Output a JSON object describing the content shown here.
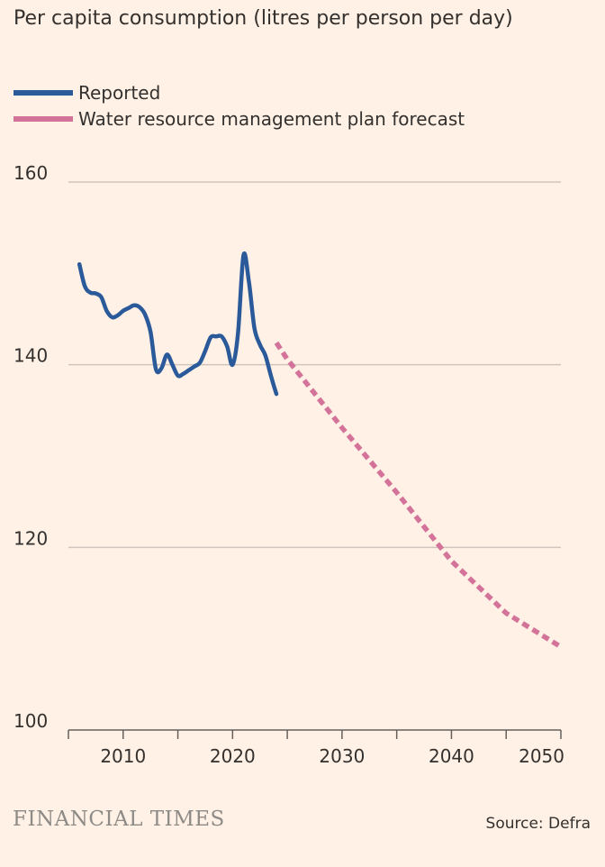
{
  "chart_data": {
    "type": "line",
    "title": "Per capita consumption (litres per person per day)",
    "xlim": [
      2005,
      2050
    ],
    "ylim": [
      100,
      160
    ],
    "y_ticks": [
      160,
      140,
      120,
      100
    ],
    "x_ticks": [
      2010,
      2020,
      2030,
      2040,
      2050
    ],
    "grid": "horizontal",
    "legend_position": "top-left",
    "series": [
      {
        "name": "Reported",
        "color": "#2b5a9a",
        "style": "solid",
        "points": [
          [
            2006.0,
            151.0
          ],
          [
            2006.5,
            148.6
          ],
          [
            2007.0,
            147.9
          ],
          [
            2007.5,
            147.8
          ],
          [
            2008.0,
            147.4
          ],
          [
            2008.5,
            145.9
          ],
          [
            2009.0,
            145.2
          ],
          [
            2009.5,
            145.4
          ],
          [
            2010.0,
            145.9
          ],
          [
            2010.5,
            146.2
          ],
          [
            2011.0,
            146.5
          ],
          [
            2011.5,
            146.3
          ],
          [
            2012.0,
            145.5
          ],
          [
            2012.5,
            143.6
          ],
          [
            2013.0,
            139.5
          ],
          [
            2013.5,
            139.6
          ],
          [
            2014.0,
            141.1
          ],
          [
            2014.5,
            140.0
          ],
          [
            2015.0,
            138.8
          ],
          [
            2015.5,
            139.0
          ],
          [
            2016.0,
            139.4
          ],
          [
            2016.5,
            139.8
          ],
          [
            2017.0,
            140.2
          ],
          [
            2017.5,
            141.5
          ],
          [
            2018.0,
            143.0
          ],
          [
            2018.5,
            143.1
          ],
          [
            2019.0,
            143.1
          ],
          [
            2019.5,
            142.0
          ],
          [
            2020.0,
            140.0
          ],
          [
            2020.5,
            143.5
          ],
          [
            2021.0,
            152.0
          ],
          [
            2021.5,
            149.0
          ],
          [
            2022.0,
            144.0
          ],
          [
            2022.5,
            142.2
          ],
          [
            2023.0,
            141.0
          ],
          [
            2023.5,
            138.8
          ],
          [
            2024.0,
            136.8
          ]
        ]
      },
      {
        "name": "Water resource management plan forecast",
        "color": "#d4739a",
        "style": "dashed",
        "points": [
          [
            2024.0,
            142.4
          ],
          [
            2025.0,
            140.6
          ],
          [
            2030.0,
            133.1
          ],
          [
            2035.0,
            126.0
          ],
          [
            2040.0,
            118.5
          ],
          [
            2045.0,
            112.8
          ],
          [
            2050.0,
            109.1
          ]
        ]
      }
    ]
  },
  "footer": {
    "brand": "FINANCIAL TIMES",
    "source": "Source: Defra"
  }
}
